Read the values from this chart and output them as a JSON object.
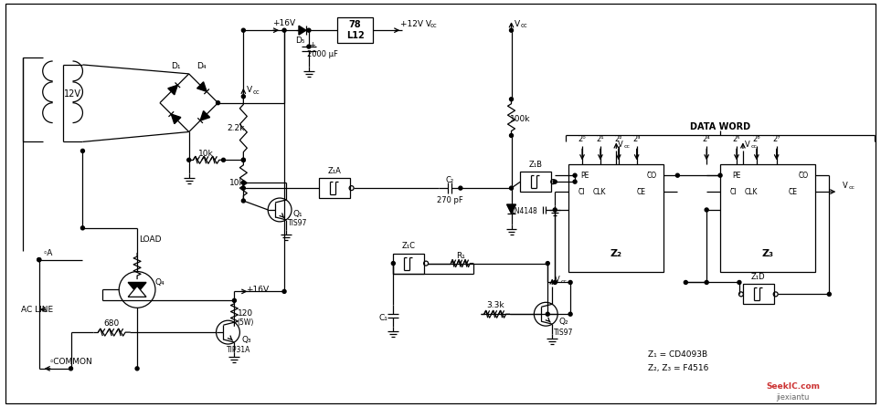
{
  "bg_color": "#ffffff",
  "line_color": "#000000",
  "figsize": [
    9.64,
    4.46
  ],
  "dpi": 100,
  "watermark1": "SeekIC.com",
  "watermark2": "jiexiantu",
  "legend_text1": "Z₁ = CD4093B",
  "legend_text2": "Z₂, Z₃ = F4516"
}
